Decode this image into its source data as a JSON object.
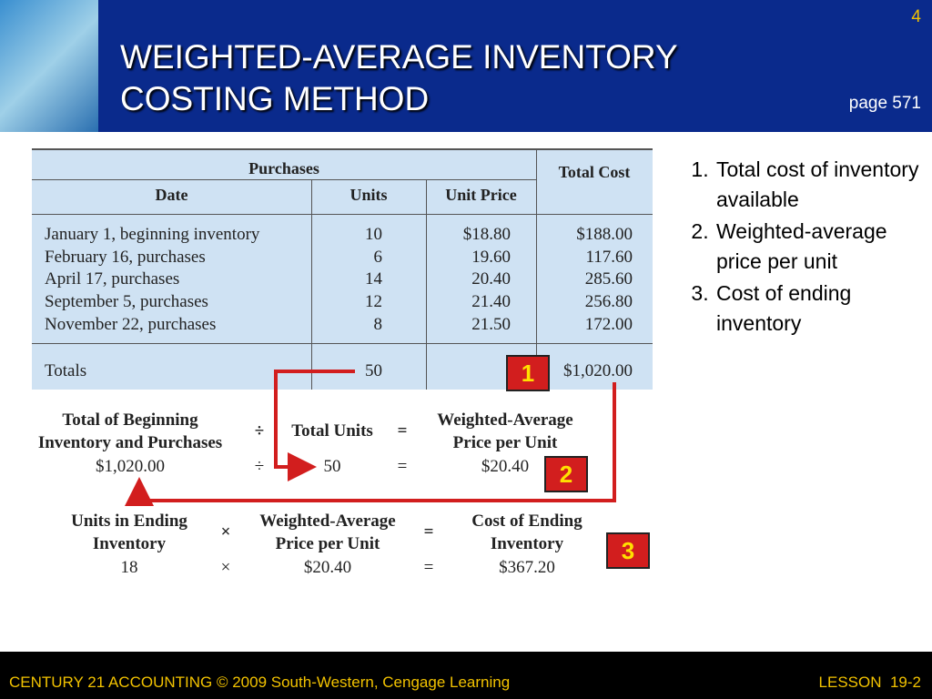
{
  "header": {
    "title_lines": [
      "WEIGHTED-AVERAGE INVENTORY",
      "COSTING METHOD"
    ],
    "slide_number": "4",
    "page_ref": "page 571"
  },
  "table": {
    "group_header": "Purchases",
    "columns": [
      "Date",
      "Units",
      "Unit Price",
      "Total Cost"
    ],
    "rows": [
      [
        "January 1, beginning inventory",
        "10",
        "$18.80",
        "$188.00"
      ],
      [
        "February 16, purchases",
        "6",
        "19.60",
        "117.60"
      ],
      [
        "April 17, purchases",
        "14",
        "20.40",
        "285.60"
      ],
      [
        "September 5, purchases",
        "12",
        "21.40",
        "256.80"
      ],
      [
        "November 22, purchases",
        "8",
        "21.50",
        "172.00"
      ]
    ],
    "totals": {
      "label": "Totals",
      "units": "50",
      "total_cost": "$1,020.00"
    }
  },
  "formulas": [
    {
      "terms": [
        "Total of Beginning Inventory and Purchases",
        "÷",
        "Total Units",
        "=",
        "Weighted-Average Price per Unit"
      ],
      "values": [
        "$1,020.00",
        "÷",
        "50",
        "=",
        "$20.40"
      ]
    },
    {
      "terms": [
        "Units in Ending Inventory",
        "×",
        "Weighted-Average Price per Unit",
        "=",
        "Cost of Ending Inventory"
      ],
      "values": [
        "18",
        "×",
        "$20.40",
        "=",
        "$367.20"
      ]
    }
  ],
  "badges": [
    "1",
    "2",
    "3"
  ],
  "steps": [
    "Total cost of inventory available",
    "Weighted-average price per unit",
    "Cost of ending inventory"
  ],
  "footer": {
    "left": "CENTURY 21 ACCOUNTING © 2009 South-Western, Cengage Learning",
    "right": "LESSON  19-2"
  }
}
